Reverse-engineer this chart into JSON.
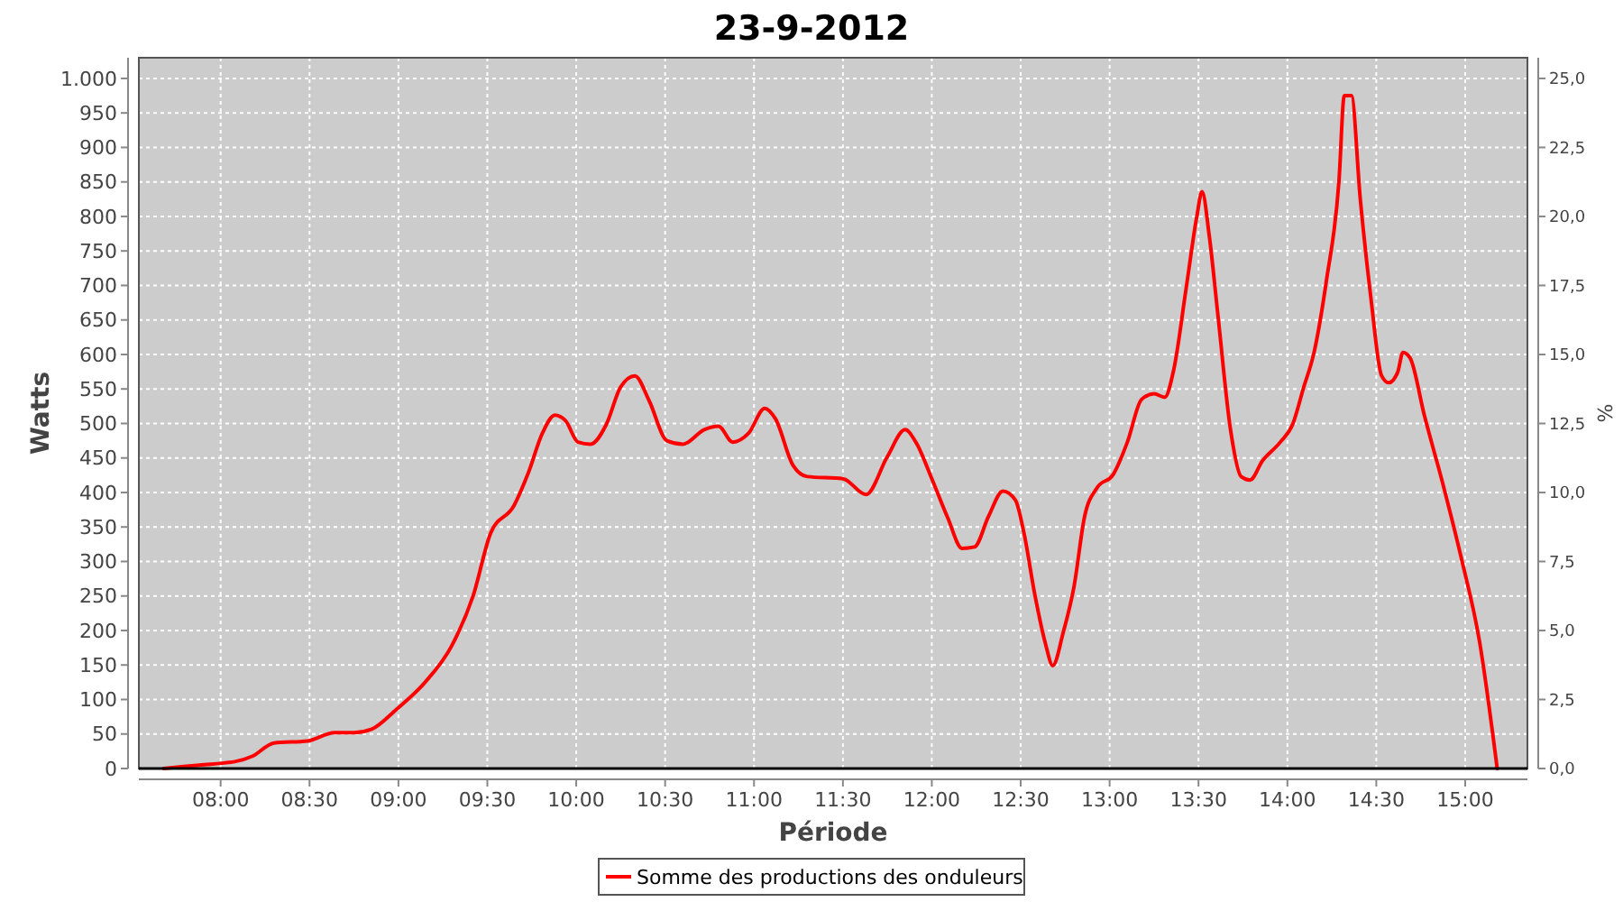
{
  "chart_data": {
    "type": "line",
    "title": "23-9-2012",
    "xlabel": "Période",
    "ylabel": "Watts",
    "y2label": "%",
    "xlim": [
      7.54,
      15.35
    ],
    "xticks": [
      {
        "value": 8,
        "label": "08:00"
      },
      {
        "value": 8.5,
        "label": "08:30"
      },
      {
        "value": 9,
        "label": "09:00"
      },
      {
        "value": 9.5,
        "label": "09:30"
      },
      {
        "value": 10,
        "label": "10:00"
      },
      {
        "value": 10.5,
        "label": "10:30"
      },
      {
        "value": 11,
        "label": "11:00"
      },
      {
        "value": 11.5,
        "label": "11:30"
      },
      {
        "value": 12,
        "label": "12:00"
      },
      {
        "value": 12.5,
        "label": "12:30"
      },
      {
        "value": 13,
        "label": "13:00"
      },
      {
        "value": 13.5,
        "label": "13:30"
      },
      {
        "value": 14,
        "label": "14:00"
      },
      {
        "value": 14.5,
        "label": "14:30"
      },
      {
        "value": 15,
        "label": "15:00"
      }
    ],
    "ylim": [
      0,
      1030
    ],
    "yticks": [
      0,
      50,
      100,
      150,
      200,
      250,
      300,
      350,
      400,
      450,
      500,
      550,
      600,
      650,
      700,
      750,
      800,
      850,
      900,
      950,
      {
        "value": 1000,
        "label": "1.000"
      }
    ],
    "y2lim": [
      0,
      25.75
    ],
    "y2ticks": [
      {
        "value": 0,
        "label": "0,0"
      },
      {
        "value": 2.5,
        "label": "2,5"
      },
      {
        "value": 5,
        "label": "5,0"
      },
      {
        "value": 7.5,
        "label": "7,5"
      },
      {
        "value": 10,
        "label": "10,0"
      },
      {
        "value": 12.5,
        "label": "12,5"
      },
      {
        "value": 15,
        "label": "15,0"
      },
      {
        "value": 17.5,
        "label": "17,5"
      },
      {
        "value": 20,
        "label": "20,0"
      },
      {
        "value": 22.5,
        "label": "22,5"
      },
      {
        "value": 25,
        "label": "25,0"
      }
    ],
    "grid": true,
    "legend": "bottom",
    "line_style": "solid",
    "marker": "none",
    "series": [
      {
        "name": "Somme des productions des onduleurs",
        "color": "#ff0000",
        "x": [
          7.68,
          7.88,
          8.08,
          8.18,
          8.3,
          8.49,
          8.64,
          8.75,
          8.85,
          8.99,
          9.15,
          9.3,
          9.42,
          9.52,
          9.65,
          9.73,
          9.81,
          9.88,
          9.94,
          10.01,
          10.08,
          10.17,
          10.25,
          10.33,
          10.41,
          10.51,
          10.6,
          10.72,
          10.8,
          10.88,
          10.97,
          11.06,
          11.12,
          11.22,
          11.3,
          11.5,
          11.63,
          11.75,
          11.85,
          11.91,
          12,
          12.09,
          12.17,
          12.24,
          12.32,
          12.4,
          12.47,
          12.52,
          12.58,
          12.64,
          12.68,
          12.74,
          12.8,
          12.86,
          12.93,
          13.02,
          13.1,
          13.18,
          13.25,
          13.31,
          13.36,
          13.43,
          13.49,
          13.52,
          13.56,
          13.61,
          13.68,
          13.74,
          13.79,
          13.86,
          13.96,
          14.03,
          14.09,
          14.15,
          14.22,
          14.29,
          14.32,
          14.36,
          14.41,
          14.47,
          14.53,
          14.57,
          14.62,
          14.65,
          14.69,
          14.77,
          14.88,
          14.98,
          15.08,
          15.18
        ],
        "values": [
          0,
          5,
          10,
          18,
          37,
          40,
          52,
          52,
          57,
          86,
          125,
          178,
          250,
          342,
          381,
          428,
          486,
          512,
          504,
          473,
          470,
          499,
          553,
          569,
          533,
          475,
          470,
          491,
          496,
          473,
          486,
          522,
          507,
          439,
          423,
          420,
          397,
          452,
          491,
          473,
          420,
          363,
          319,
          321,
          366,
          402,
          389,
          339,
          251,
          180,
          149,
          198,
          264,
          366,
          407,
          426,
          473,
          535,
          543,
          538,
          577,
          695,
          799,
          836,
          773,
          655,
          491,
          423,
          418,
          446,
          473,
          499,
          551,
          603,
          708,
          851,
          975,
          975,
          825,
          681,
          569,
          559,
          574,
          603,
          595,
          512,
          407,
          303,
          185,
          0
        ]
      }
    ]
  }
}
